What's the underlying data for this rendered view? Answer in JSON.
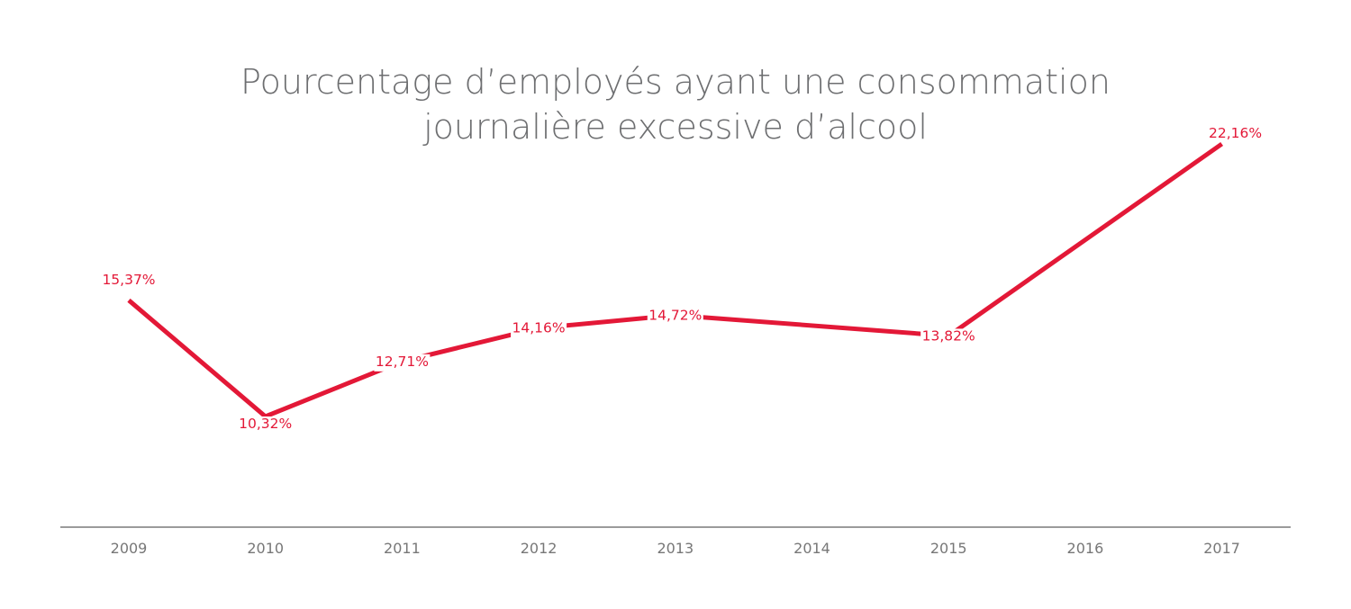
{
  "chart_data": {
    "type": "line",
    "title_lines": [
      "Pourcentage d’employés ayant une consommation",
      "journalière excessive d’alcool"
    ],
    "xlabel": "",
    "ylabel": "",
    "categories": [
      "2009",
      "2010",
      "2011",
      "2012",
      "2013",
      "2014",
      "2015",
      "2016",
      "2017"
    ],
    "series": [
      {
        "points": [
          {
            "x": "2009",
            "y": 15.37,
            "label": "15,37%"
          },
          {
            "x": "2010",
            "y": 10.32,
            "label": "10,32%"
          },
          {
            "x": "2011",
            "y": 12.71,
            "label": "12,71%"
          },
          {
            "x": "2012",
            "y": 14.16,
            "label": "14,16%"
          },
          {
            "x": "2013",
            "y": 14.72,
            "label": "14,72%"
          },
          {
            "x": "2015",
            "y": 13.82,
            "label": "13,82%"
          },
          {
            "x": "2017",
            "y": 22.16,
            "label": "22,16%"
          }
        ]
      }
    ],
    "grid": false,
    "y_axis_visible": false,
    "legend": "none",
    "colors": {
      "line": "#e31837",
      "label": "#e31837",
      "title": "#6d6e70",
      "axis": "#7a7a7a",
      "tick": "#777777"
    }
  }
}
